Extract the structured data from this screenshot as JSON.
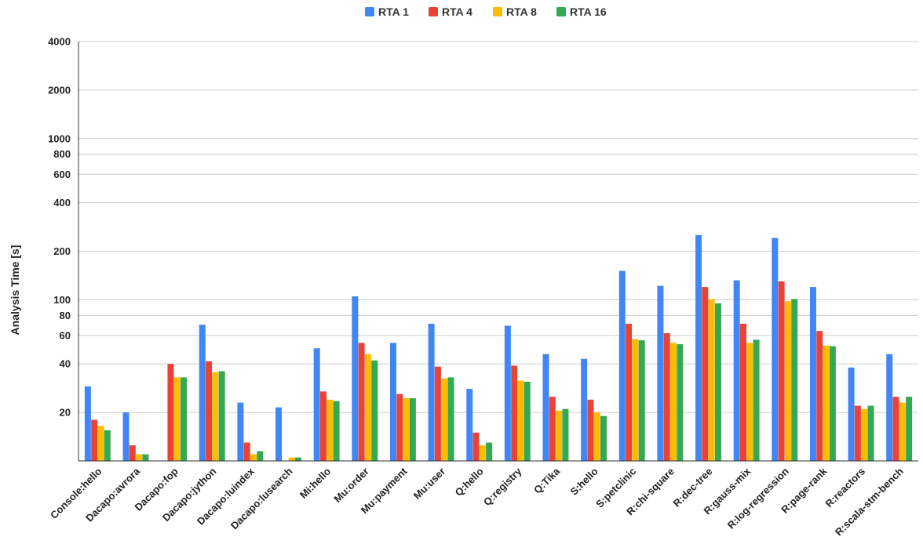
{
  "chart_data": {
    "type": "bar",
    "title": "",
    "xlabel": "",
    "ylabel": "Analysis Time [s]",
    "yscale": "log",
    "ylim": [
      10,
      4000
    ],
    "yticks": [
      20,
      40,
      60,
      80,
      100,
      200,
      400,
      600,
      800,
      1000,
      2000,
      4000
    ],
    "grid": true,
    "legend_position": "top",
    "categories": [
      "Console:hello",
      "Dacapo:avrora",
      "Dacapo:fop",
      "Dacapo:jython",
      "Dacapo:luindex",
      "Dacapo:lusearch",
      "Mi:hello",
      "Mu:order",
      "Mu:payment",
      "Mu:user",
      "Q:hello",
      "Q:registry",
      "Q:Tika",
      "S:hello",
      "S:petclinic",
      "R:chi-square",
      "R:dec-tree",
      "R:gauss-mix",
      "R:log-regression",
      "R:page-rank",
      "R:reactors",
      "R:scala-stm-bench"
    ],
    "series": [
      {
        "name": "RTA 1",
        "color": "#4285F4",
        "values": [
          29,
          20,
          null,
          70,
          23,
          21.5,
          50,
          105,
          54,
          71,
          28,
          69,
          46,
          43,
          151,
          122,
          252,
          132,
          242,
          120,
          38,
          46
        ]
      },
      {
        "name": "RTA 4",
        "color": "#EA4335",
        "values": [
          18,
          12.5,
          40,
          41.5,
          13,
          null,
          27,
          54,
          26,
          38.5,
          15,
          39,
          25,
          24,
          71,
          62,
          120,
          71,
          130,
          64,
          22,
          25
        ]
      },
      {
        "name": "RTA 8",
        "color": "#FBBC04",
        "values": [
          16.5,
          11,
          33,
          35.5,
          11,
          10.5,
          24,
          46,
          24.5,
          32.5,
          12.5,
          31.5,
          20.5,
          20,
          57,
          54,
          101,
          54,
          98,
          52,
          21,
          23
        ]
      },
      {
        "name": "RTA 16",
        "color": "#34A853",
        "values": [
          15.5,
          11,
          33,
          36,
          11.5,
          10.5,
          23.5,
          42,
          24.5,
          33,
          13,
          31,
          21,
          19,
          56,
          53,
          95,
          56.5,
          101,
          51.5,
          22,
          25
        ]
      }
    ]
  }
}
